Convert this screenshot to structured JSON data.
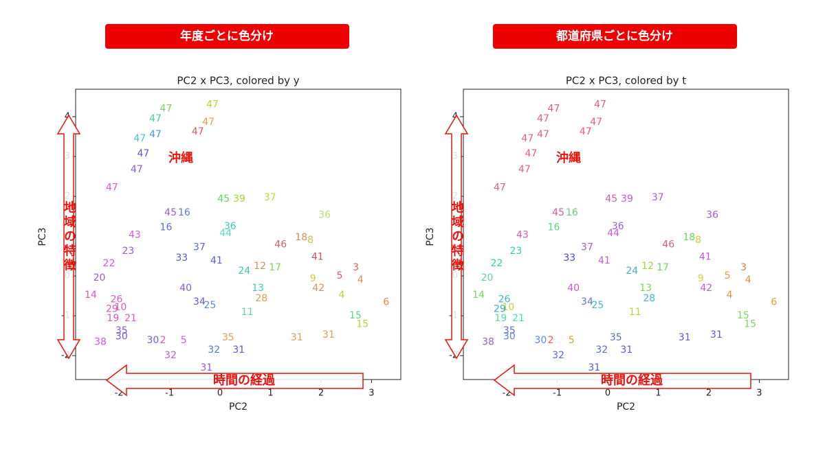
{
  "chart_data": [
    {
      "type": "scatter",
      "banner": "年度ごとに色分け",
      "title": "PC2 x PC3, colored by y",
      "xlabel": "PC2",
      "ylabel": "PC3",
      "xlim": [
        -2.86,
        3.58
      ],
      "ylim": [
        -2.6,
        4.69
      ],
      "xticks": [
        -2,
        -1,
        0,
        1,
        2,
        3
      ],
      "yticks": [
        -2,
        -1,
        0,
        1,
        2,
        3,
        4
      ],
      "annotations": {
        "region": "沖縄",
        "y_arrow": "地域の特徴",
        "x_arrow": "時間の経過"
      },
      "labels": [
        "47",
        "47",
        "47",
        "47",
        "47",
        "47",
        "47",
        "47",
        "47",
        "47",
        "45",
        "16",
        "45",
        "39",
        "37",
        "36",
        "43",
        "16",
        "18",
        "46",
        "41",
        "23",
        "22",
        "33",
        "3",
        "5",
        "4",
        "20",
        "14",
        "9",
        "42",
        "6",
        "4",
        "26",
        "10",
        "29",
        "19",
        "21",
        "15",
        "15",
        "35",
        "30",
        "38",
        "30",
        "2",
        "5",
        "32",
        "31",
        "31",
        "31",
        "32",
        "31",
        "35",
        "36",
        "41",
        "17",
        "28",
        "13",
        "12",
        "8",
        "44",
        "37",
        "24",
        "25",
        "11",
        "40",
        "34"
      ],
      "x": [
        -1.07,
        -0.15,
        -1.28,
        -0.23,
        -1.59,
        -1.28,
        -0.44,
        -1.52,
        -1.65,
        -2.14,
        -0.98,
        -0.71,
        0.07,
        0.38,
        0.99,
        2.07,
        -1.69,
        -1.07,
        1.61,
        1.2,
        1.93,
        -1.82,
        -2.2,
        -0.76,
        2.69,
        2.37,
        2.78,
        -2.39,
        -2.56,
        1.84,
        1.95,
        3.29,
        2.41,
        -2.05,
        -1.97,
        -2.14,
        -2.12,
        -1.77,
        2.68,
        2.82,
        -1.95,
        -1.95,
        -2.37,
        -1.33,
        -1.13,
        -0.72,
        -0.98,
        -0.27,
        2.15,
        1.52,
        -0.12,
        0.37,
        0.16,
        0.2,
        -0.07,
        1.09,
        0.82,
        0.75,
        0.79,
        1.79,
        0.11,
        -0.41,
        0.48,
        -0.2,
        0.54,
        -0.68,
        -0.41
      ],
      "y": [
        4.2,
        4.3,
        3.95,
        3.86,
        3.45,
        3.55,
        3.62,
        3.07,
        2.67,
        2.22,
        1.59,
        1.59,
        1.93,
        1.93,
        1.97,
        1.53,
        1.03,
        1.22,
        0.97,
        0.79,
        0.48,
        0.62,
        0.31,
        0.45,
        0.21,
        0,
        -0.1,
        -0.05,
        -0.48,
        -0.07,
        -0.31,
        -0.66,
        -0.48,
        -0.59,
        -0.79,
        -0.83,
        -1.07,
        -1.07,
        -1.0,
        -1.21,
        -1.38,
        -1.52,
        -1.66,
        -1.62,
        -1.62,
        -1.62,
        -2.0,
        -2.31,
        -1.48,
        -1.55,
        -1.86,
        -1.86,
        -1.55,
        1.24,
        0.38,
        0.21,
        -0.57,
        -0.31,
        0.24,
        0.9,
        1.07,
        0.72,
        0.12,
        -0.74,
        -0.91,
        -0.31,
        -0.65
      ],
      "colors": [
        "#7ad35a",
        "#b8d23c",
        "#4cc9a0",
        "#d8a640",
        "#4cc3d0",
        "#4c9ad8",
        "#d8585a",
        "#5a5ad8",
        "#8a5ad8",
        "#d85ad0",
        "#9a5ad8",
        "#5a7ad8",
        "#5ad85a",
        "#a0d83c",
        "#c8d83c",
        "#b8e070",
        "#d85ad0",
        "#5a6ad8",
        "#d8905a",
        "#d8605a",
        "#d8505a",
        "#9a5ad8",
        "#c85ad8",
        "#5a5ad8",
        "#d8605a",
        "#d8605a",
        "#d8905a",
        "#9a5ad8",
        "#d85ab8",
        "#d8c83c",
        "#d8905a",
        "#d8903c",
        "#c8c83c",
        "#d85ab8",
        "#d85ab8",
        "#d85ab8",
        "#d85ab8",
        "#d85ab8",
        "#5ad87a",
        "#a8d83c",
        "#7a5ad8",
        "#7a5ad8",
        "#c85ad8",
        "#7a5ad8",
        "#d85ab8",
        "#c85ad8",
        "#c85ad8",
        "#9a5ad8",
        "#d8a05a",
        "#d8a05a",
        "#5a7ad8",
        "#5a5ad8",
        "#d8a05a",
        "#3cc8b8",
        "#5a5ad8",
        "#7ad85a",
        "#d8a05a",
        "#3cc8b8",
        "#d8905a",
        "#c8c83c",
        "#5ad8c8",
        "#5a6ad8",
        "#3cc8b8",
        "#5a8ad8",
        "#5ad8a0",
        "#8a5ad8",
        "#6a5ad8"
      ]
    },
    {
      "type": "scatter",
      "banner": "都道府県ごとに色分け",
      "title": "PC2 x PC3, colored by t",
      "xlabel": "PC2",
      "ylabel": "PC3",
      "xlim": [
        -2.86,
        3.58
      ],
      "ylim": [
        -2.6,
        4.69
      ],
      "xticks": [
        -2,
        -1,
        0,
        1,
        2,
        3
      ],
      "yticks": [
        -2,
        -1,
        0,
        1,
        2,
        3,
        4
      ],
      "annotations": {
        "region": "沖縄",
        "y_arrow": "地域の特徴",
        "x_arrow": "時間の経過"
      },
      "labels": [
        "47",
        "47",
        "47",
        "47",
        "47",
        "47",
        "47",
        "47",
        "47",
        "47",
        "45",
        "16",
        "45",
        "39",
        "37",
        "36",
        "43",
        "16",
        "18",
        "46",
        "41",
        "23",
        "22",
        "33",
        "3",
        "5",
        "4",
        "20",
        "14",
        "9",
        "42",
        "6",
        "4",
        "26",
        "10",
        "29",
        "19",
        "21",
        "15",
        "15",
        "35",
        "30",
        "38",
        "30",
        "2",
        "5",
        "32",
        "31",
        "31",
        "31",
        "32",
        "31",
        "35",
        "36",
        "41",
        "17",
        "28",
        "13",
        "12",
        "8",
        "44",
        "37",
        "24",
        "25",
        "11",
        "40",
        "34"
      ],
      "x": [
        -1.07,
        -0.15,
        -1.28,
        -0.23,
        -1.59,
        -1.28,
        -0.44,
        -1.52,
        -1.65,
        -2.14,
        -0.98,
        -0.71,
        0.07,
        0.38,
        0.99,
        2.07,
        -1.69,
        -1.07,
        1.61,
        1.2,
        1.93,
        -1.82,
        -2.2,
        -0.76,
        2.69,
        2.37,
        2.78,
        -2.39,
        -2.56,
        1.84,
        1.95,
        3.29,
        2.41,
        -2.05,
        -1.97,
        -2.14,
        -2.12,
        -1.77,
        2.68,
        2.82,
        -1.95,
        -1.95,
        -2.37,
        -1.33,
        -1.13,
        -0.72,
        -0.98,
        -0.27,
        2.15,
        1.52,
        -0.12,
        0.37,
        0.16,
        0.2,
        -0.07,
        1.09,
        0.82,
        0.75,
        0.79,
        1.79,
        0.11,
        -0.41,
        0.48,
        -0.2,
        0.54,
        -0.68,
        -0.41
      ],
      "y": [
        4.2,
        4.3,
        3.95,
        3.86,
        3.45,
        3.55,
        3.62,
        3.07,
        2.67,
        2.22,
        1.59,
        1.59,
        1.93,
        1.93,
        1.97,
        1.53,
        1.03,
        1.22,
        0.97,
        0.79,
        0.48,
        0.62,
        0.31,
        0.45,
        0.21,
        0,
        -0.1,
        -0.05,
        -0.48,
        -0.07,
        -0.31,
        -0.66,
        -0.48,
        -0.59,
        -0.79,
        -0.83,
        -1.07,
        -1.07,
        -1.0,
        -1.21,
        -1.38,
        -1.52,
        -1.66,
        -1.62,
        -1.62,
        -1.62,
        -2.0,
        -2.31,
        -1.48,
        -1.55,
        -1.86,
        -1.86,
        -1.55,
        1.24,
        0.38,
        0.21,
        -0.57,
        -0.31,
        0.24,
        0.9,
        1.07,
        0.72,
        0.12,
        -0.74,
        -0.91,
        -0.31,
        -0.65
      ],
      "colors": [
        "#e0607a",
        "#e0607a",
        "#e0607a",
        "#e0607a",
        "#e0607a",
        "#e0607a",
        "#e0607a",
        "#e0607a",
        "#e0607a",
        "#e0607a",
        "#d85a9a",
        "#5ad87a",
        "#d85a9a",
        "#c85ad8",
        "#a85ad8",
        "#a05ad8",
        "#d85ac0",
        "#5ad87a",
        "#6ad85a",
        "#d85a8a",
        "#c05ad8",
        "#3cc8b8",
        "#3cc8a8",
        "#4a4ad8",
        "#d8803c",
        "#d8a03c",
        "#d8903c",
        "#5ad8a0",
        "#7ad85a",
        "#c8d83c",
        "#c85ad0",
        "#d8a03c",
        "#d8903c",
        "#3cb8c8",
        "#b8d83c",
        "#3ca8c8",
        "#5ad8a0",
        "#4ad8b0",
        "#7ad85a",
        "#7ad85a",
        "#5a6ad8",
        "#5a8ad8",
        "#9a5ad8",
        "#5a8ad8",
        "#d8605a",
        "#d8a03c",
        "#5a6ad8",
        "#5a5ad8",
        "#5a5ad8",
        "#5a5ad8",
        "#5a6ad8",
        "#5a5ad8",
        "#5a6ad8",
        "#a05ad8",
        "#c05ad8",
        "#6ad85a",
        "#3cb8c8",
        "#7ad85a",
        "#9ad83c",
        "#d8c83c",
        "#c85ad8",
        "#a85ad8",
        "#3cb0c8",
        "#3cb8c8",
        "#b0d83c",
        "#c05ad8",
        "#5a7ad8"
      ]
    }
  ]
}
